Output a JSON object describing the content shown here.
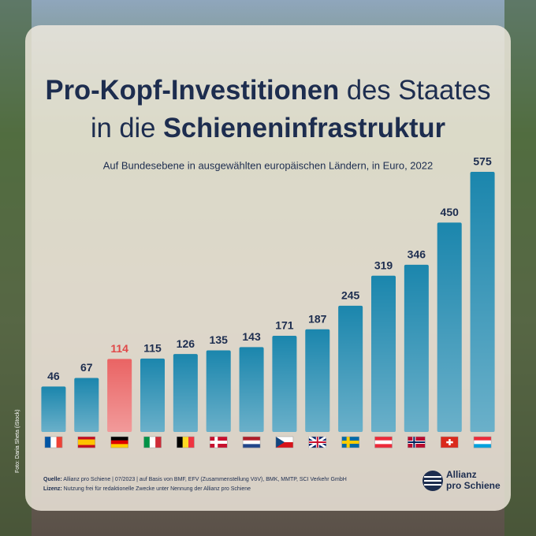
{
  "chart_data": {
    "type": "bar",
    "title": {
      "line1": [
        "Pro-Kopf-Investitionen",
        " des Staates"
      ],
      "line2": [
        "in die ",
        "Schieneninfrastruktur"
      ]
    },
    "subtitle": "Auf Bundesebene in ausgewählten europäischen Ländern, in Euro, 2022",
    "categories": [
      null,
      null,
      null,
      null,
      null,
      null,
      null,
      null,
      null,
      null,
      null,
      null,
      null,
      null
    ],
    "values": [
      46,
      67,
      114,
      115,
      126,
      135,
      143,
      171,
      187,
      245,
      319,
      346,
      450,
      575
    ],
    "colors": [
      "#1b86ad",
      "#1b86ad",
      "#ea6464",
      "#1b86ad",
      "#1b86ad",
      "#1b86ad",
      "#1b86ad",
      "#1b86ad",
      "#1b86ad",
      "#1b86ad",
      "#1b86ad",
      "#1b86ad",
      "#1b86ad",
      "#1b86ad"
    ],
    "ylim": [
      -66,
      575
    ],
    "source": {
      "label": "Quelle:",
      "text": " Allianz pro Schiene | 07/2023 | auf Basis von BMF, EFV (Zusammenstellung VöV), BMK, MMTP, SCI Verkehr GmbH"
    },
    "license": {
      "label": "Lizenz:",
      "text": " Nutzung frei für redaktionelle Zwecke unter Nennung der Allianz pro Schiene"
    },
    "photo_credit": "Foto: Daria Sheta (iStock)",
    "logo": [
      "Allianz",
      "pro Schiene"
    ]
  }
}
